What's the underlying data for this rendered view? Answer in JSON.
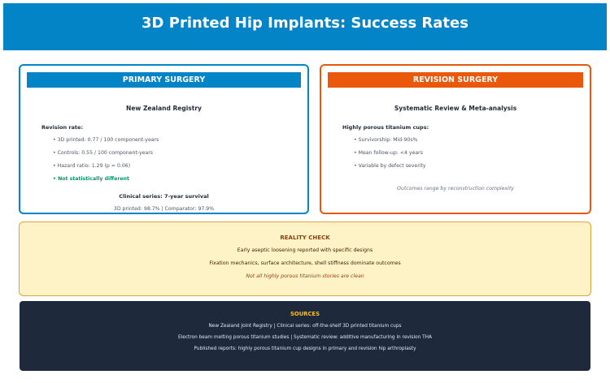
{
  "header": {
    "title": "3D Printed Hip Implants: Success Rates"
  },
  "colors": {
    "primary_blue": "#0284c7",
    "revision_orange": "#ea580c",
    "success_green": "#059669",
    "reality_bg": "#fef3c7",
    "reality_accent": "#92400e",
    "sources_bg": "#1e293b",
    "sources_title": "#fbbf24"
  },
  "primary": {
    "heading": "PRIMARY SURGERY",
    "source": "New Zealand Registry",
    "label": "Revision rate:",
    "bullets": [
      "• 3D printed: 0.77 / 100 component-years",
      "• Controls: 0.55 / 100 component-years",
      "• Hazard ratio: 1.29 (p = 0.06)",
      "• Not statistically different"
    ],
    "clinical_title": "Clinical series: 7-year survival",
    "clinical_values": "3D printed: 98.7%  |  Comparator: 97.9%"
  },
  "revision": {
    "heading": "REVISION SURGERY",
    "source": "Systematic Review & Meta-analysis",
    "label": "Highly porous titanium cups:",
    "bullets": [
      "• Survivorship: Mid-90s%",
      "• Mean follow-up: <4 years",
      "• Variable by defect severity"
    ],
    "note": "Outcomes range by reconstruction complexity"
  },
  "reality_check": {
    "title": "REALITY CHECK",
    "lines": [
      "Early aseptic loosening reported with specific designs",
      "Fixation mechanics, surface architecture, shell stiffness dominate outcomes"
    ],
    "note": "Not all highly porous titanium stories are clean"
  },
  "sources": {
    "title": "SOURCES",
    "lines": [
      "New Zealand Joint Registry | Clinical series: off-the-shelf 3D printed titanium cups",
      "Electron beam melting porous titanium studies | Systematic review: additive manufacturing in revision THA",
      "Published reports: highly porous titanium cup designs in primary and revision hip arthroplasty"
    ]
  }
}
